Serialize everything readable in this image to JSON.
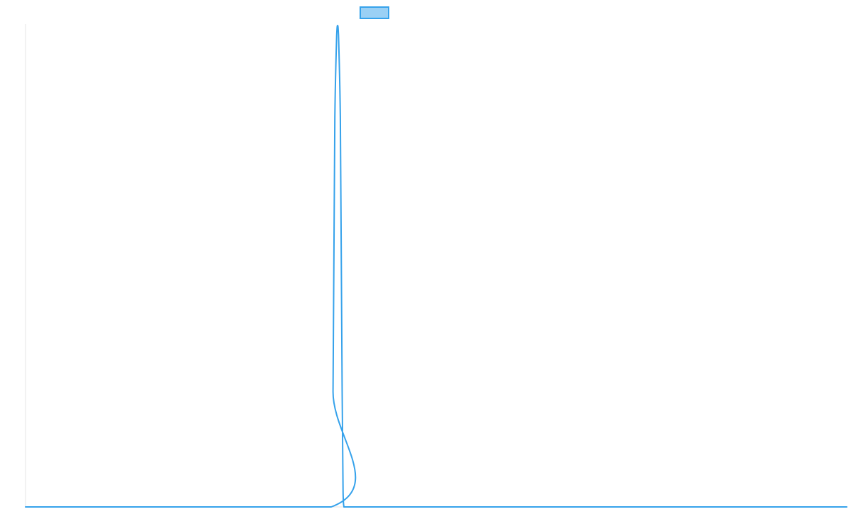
{
  "chart_data": {
    "type": "line",
    "title": "",
    "xlabel": "",
    "ylabel": "",
    "x": [
      0,
      335,
      337,
      338,
      339,
      341,
      342,
      343,
      345,
      346,
      347,
      348,
      349,
      350,
      360,
      400,
      700,
      900
    ],
    "series": [
      {
        "name": "",
        "color": "#36a2eb",
        "fill": "#9ad0f5",
        "values": [
          0,
          0,
          0.24,
          0.53,
          0.81,
          0.98,
          1.0,
          0.98,
          0.81,
          0.53,
          0.24,
          0.03,
          0,
          0,
          0,
          0,
          0,
          0
        ]
      }
    ],
    "xlim": [
      0,
      900
    ],
    "ylim": [
      0,
      1
    ],
    "grid": false,
    "legend": {
      "position": "top",
      "show_label": false
    },
    "axis_color": "#e6e6e6"
  }
}
